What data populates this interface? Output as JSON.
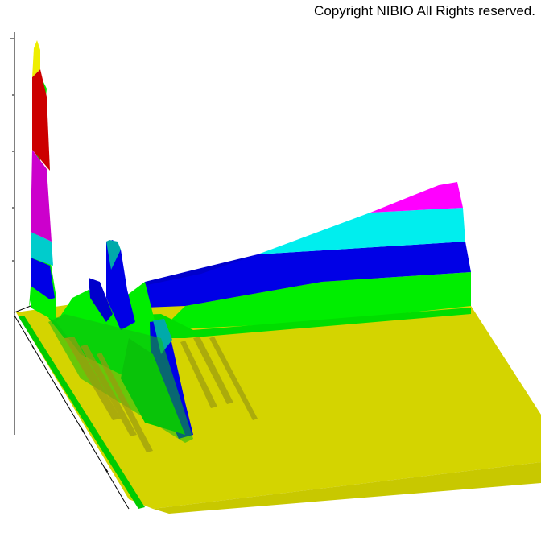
{
  "copyright": "Copyright NIBIO All Rights reserved.",
  "chart_data": {
    "type": "surface-3d",
    "title": "",
    "xlabel": "",
    "ylabel": "",
    "zlabel": "",
    "grid": false,
    "description_note": "",
    "color_bands": [
      "#d4d400",
      "#00ee00",
      "#0000e6",
      "#00eeee",
      "#ff00ff",
      "#cc0000",
      "#eeee00"
    ],
    "main_peak": {
      "relative_height": 1.0
    },
    "ridge_levels": [
      0.05,
      0.12,
      0.19,
      0.27,
      0.36
    ]
  }
}
